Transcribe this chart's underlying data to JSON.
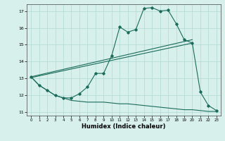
{
  "xlabel": "Humidex (Indice chaleur)",
  "bg_color": "#d7f0ec",
  "line_color": "#1a6b5a",
  "grid_color": "#b0d8d4",
  "xlim": [
    -0.5,
    23.5
  ],
  "ylim": [
    10.8,
    17.4
  ],
  "yticks": [
    11,
    12,
    13,
    14,
    15,
    16,
    17
  ],
  "xticks": [
    0,
    1,
    2,
    3,
    4,
    5,
    6,
    7,
    8,
    9,
    10,
    11,
    12,
    13,
    14,
    15,
    16,
    17,
    18,
    19,
    20,
    21,
    22,
    23
  ],
  "curve1_x": [
    0,
    1,
    2,
    3,
    4,
    5,
    6,
    7,
    8,
    9,
    10,
    11,
    12,
    13,
    14,
    15,
    16,
    17,
    18,
    19,
    20,
    21,
    22,
    23
  ],
  "curve1_y": [
    13.1,
    12.6,
    12.3,
    12.0,
    11.85,
    11.85,
    12.1,
    12.5,
    13.3,
    13.3,
    14.35,
    16.05,
    15.75,
    15.9,
    17.15,
    17.2,
    17.0,
    17.05,
    16.25,
    15.3,
    15.1,
    12.2,
    11.4,
    11.1
  ],
  "curve2_x": [
    0,
    1,
    2,
    3,
    4,
    5,
    6,
    7,
    8,
    9,
    10,
    11,
    12,
    13,
    14,
    15,
    16,
    17,
    18,
    19,
    20,
    21,
    22,
    23
  ],
  "curve2_y": [
    13.1,
    12.6,
    12.3,
    12.0,
    11.85,
    11.7,
    11.65,
    11.6,
    11.6,
    11.6,
    11.55,
    11.5,
    11.5,
    11.45,
    11.4,
    11.35,
    11.3,
    11.25,
    11.2,
    11.15,
    11.15,
    11.1,
    11.05,
    11.05
  ],
  "line1_x": [
    0,
    20
  ],
  "line1_y": [
    13.1,
    15.3
  ],
  "line2_x": [
    0,
    20
  ],
  "line2_y": [
    13.05,
    15.1
  ]
}
